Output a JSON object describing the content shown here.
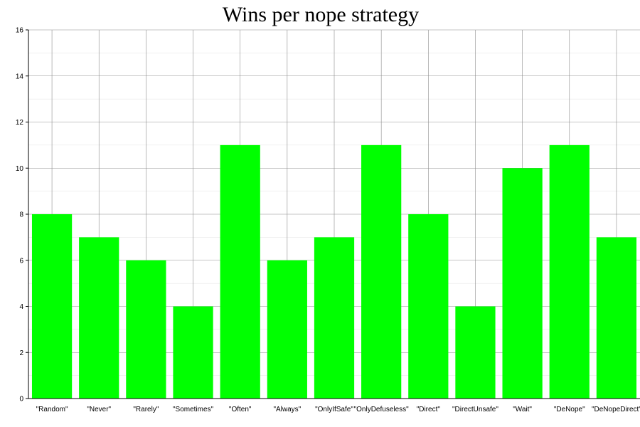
{
  "chart_data": {
    "type": "bar",
    "title": "Wins per nope strategy",
    "xlabel": "",
    "ylabel": "",
    "categories": [
      "\"Random\"",
      "\"Never\"",
      "\"Rarely\"",
      "\"Sometimes\"",
      "\"Often\"",
      "\"Always\"",
      "\"OnlyIfSafe\"",
      "\"OnlyDefuseless\"",
      "\"Direct\"",
      "\"DirectUnsafe\"",
      "\"Wait\"",
      "\"DeNope\"",
      "\"DeNopeDirect\""
    ],
    "values": [
      8,
      7,
      6,
      4,
      11,
      6,
      7,
      11,
      8,
      4,
      10,
      11,
      7
    ],
    "ylim": [
      0,
      16
    ],
    "yticks": [
      "0",
      "2",
      "4",
      "6",
      "8",
      "10",
      "12",
      "14",
      "16"
    ],
    "grid": true,
    "bar_color": "#00ff00"
  }
}
